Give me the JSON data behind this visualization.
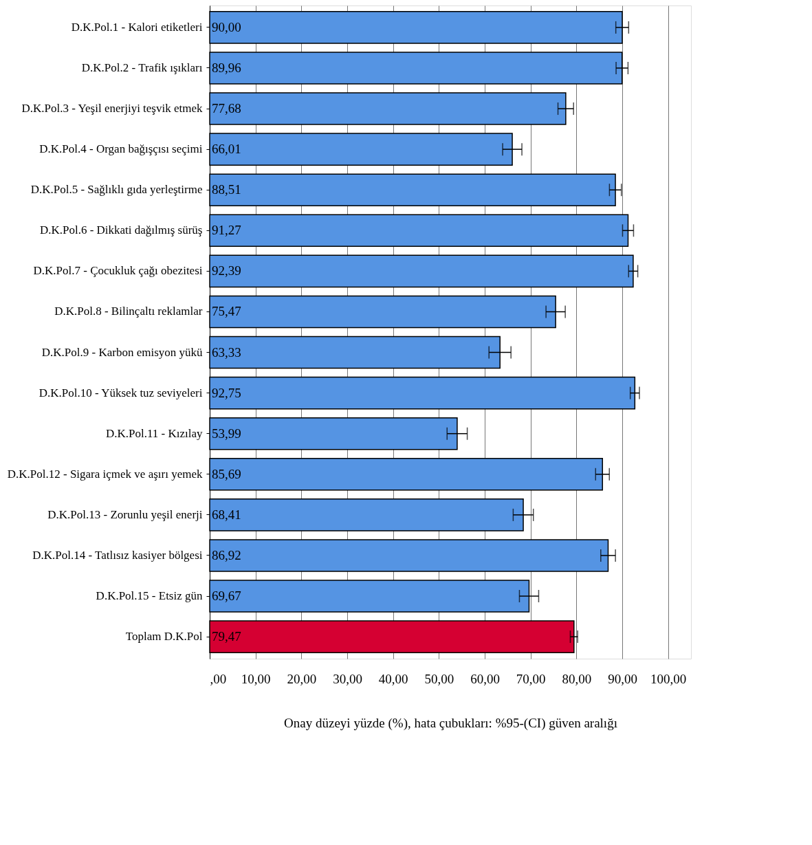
{
  "chart_data": {
    "type": "bar",
    "orientation": "horizontal",
    "xlabel": "Onay düzeyi yüzde (%), hata çubukları: %95-(CI)  güven aralığı",
    "categories": [
      "D.K.Pol.1 - Kalori etiketleri",
      "D.K.Pol.2 - Trafik ışıkları",
      "D.K.Pol.3 - Yeşil enerjiyi teşvik etmek",
      "D.K.Pol.4 - Organ bağışçısı seçimi",
      "D.K.Pol.5 - Sağlıklı gıda yerleştirme",
      "D.K.Pol.6 - Dikkati dağılmış sürüş",
      "D.K.Pol.7 - Çocukluk çağı obezitesi",
      "D.K.Pol.8 - Bilinçaltı reklamlar",
      "D.K.Pol.9 - Karbon emisyon yükü",
      "D.K.Pol.10 - Yüksek tuz seviyeleri",
      "D.K.Pol.11 - Kızılay",
      "D.K.Pol.12 - Sigara içmek ve aşırı yemek",
      "D.K.Pol.13 - Zorunlu yeşil enerji",
      "D.K.Pol.14 - Tatlısız kasiyer bölgesi",
      "D.K.Pol.15 - Etsiz gün",
      "Toplam D.K.Pol"
    ],
    "values": [
      90.0,
      89.96,
      77.68,
      66.01,
      88.51,
      91.27,
      92.39,
      75.47,
      63.33,
      92.75,
      53.99,
      85.69,
      68.41,
      86.92,
      69.67,
      79.47
    ],
    "value_labels": [
      "90,00",
      "89,96",
      "77,68",
      "66,01",
      "88,51",
      "91,27",
      "92,39",
      "75,47",
      "63,33",
      "92,75",
      "53,99",
      "85,69",
      "68,41",
      "86,92",
      "69,67",
      "79,47"
    ],
    "errors": [
      1.4,
      1.3,
      1.7,
      2.1,
      1.3,
      1.2,
      1.0,
      2.1,
      2.4,
      1.0,
      2.2,
      1.5,
      2.2,
      1.6,
      2.1,
      0.8
    ],
    "colors": [
      "#5594e3",
      "#5594e3",
      "#5594e3",
      "#5594e3",
      "#5594e3",
      "#5594e3",
      "#5594e3",
      "#5594e3",
      "#5594e3",
      "#5594e3",
      "#5594e3",
      "#5594e3",
      "#5594e3",
      "#5594e3",
      "#5594e3",
      "#d50032"
    ],
    "xlim": [
      0,
      105
    ],
    "xticks": [
      {
        "value": 0,
        "label": ",00"
      },
      {
        "value": 10,
        "label": "10,00"
      },
      {
        "value": 20,
        "label": "20,00"
      },
      {
        "value": 30,
        "label": "30,00"
      },
      {
        "value": 40,
        "label": "40,00"
      },
      {
        "value": 50,
        "label": "50,00"
      },
      {
        "value": 60,
        "label": "60,00"
      },
      {
        "value": 70,
        "label": "70,00"
      },
      {
        "value": 80,
        "label": "80,00"
      },
      {
        "value": 90,
        "label": "90,00"
      },
      {
        "value": 100,
        "label": "100,00"
      }
    ],
    "grid": "x"
  }
}
